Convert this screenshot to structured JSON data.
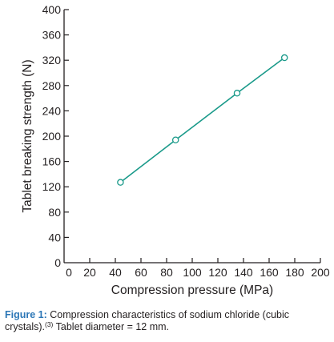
{
  "chart_data": {
    "type": "line",
    "xlabel": "Compression pressure (MPa)",
    "ylabel": "Tablet breaking strength (N)",
    "xlim": [
      0,
      200
    ],
    "ylim": [
      0,
      400
    ],
    "x_ticks": [
      0,
      20,
      40,
      60,
      80,
      100,
      120,
      140,
      160,
      180,
      200
    ],
    "y_ticks": [
      0,
      40,
      80,
      120,
      160,
      200,
      240,
      280,
      320,
      360,
      400
    ],
    "grid": false,
    "series": [
      {
        "x": [
          44,
          87,
          135,
          172
        ],
        "y": [
          127,
          194,
          268,
          324
        ],
        "marker": "open-circle",
        "color": "#1a9a8a"
      }
    ]
  },
  "caption": {
    "label": "Figure 1:",
    "text_before_ref": "Compression characteristics of sodium chloride (cubic crystals).",
    "reference": "(3)",
    "text_after_ref": "Tablet diameter = 12 mm."
  }
}
